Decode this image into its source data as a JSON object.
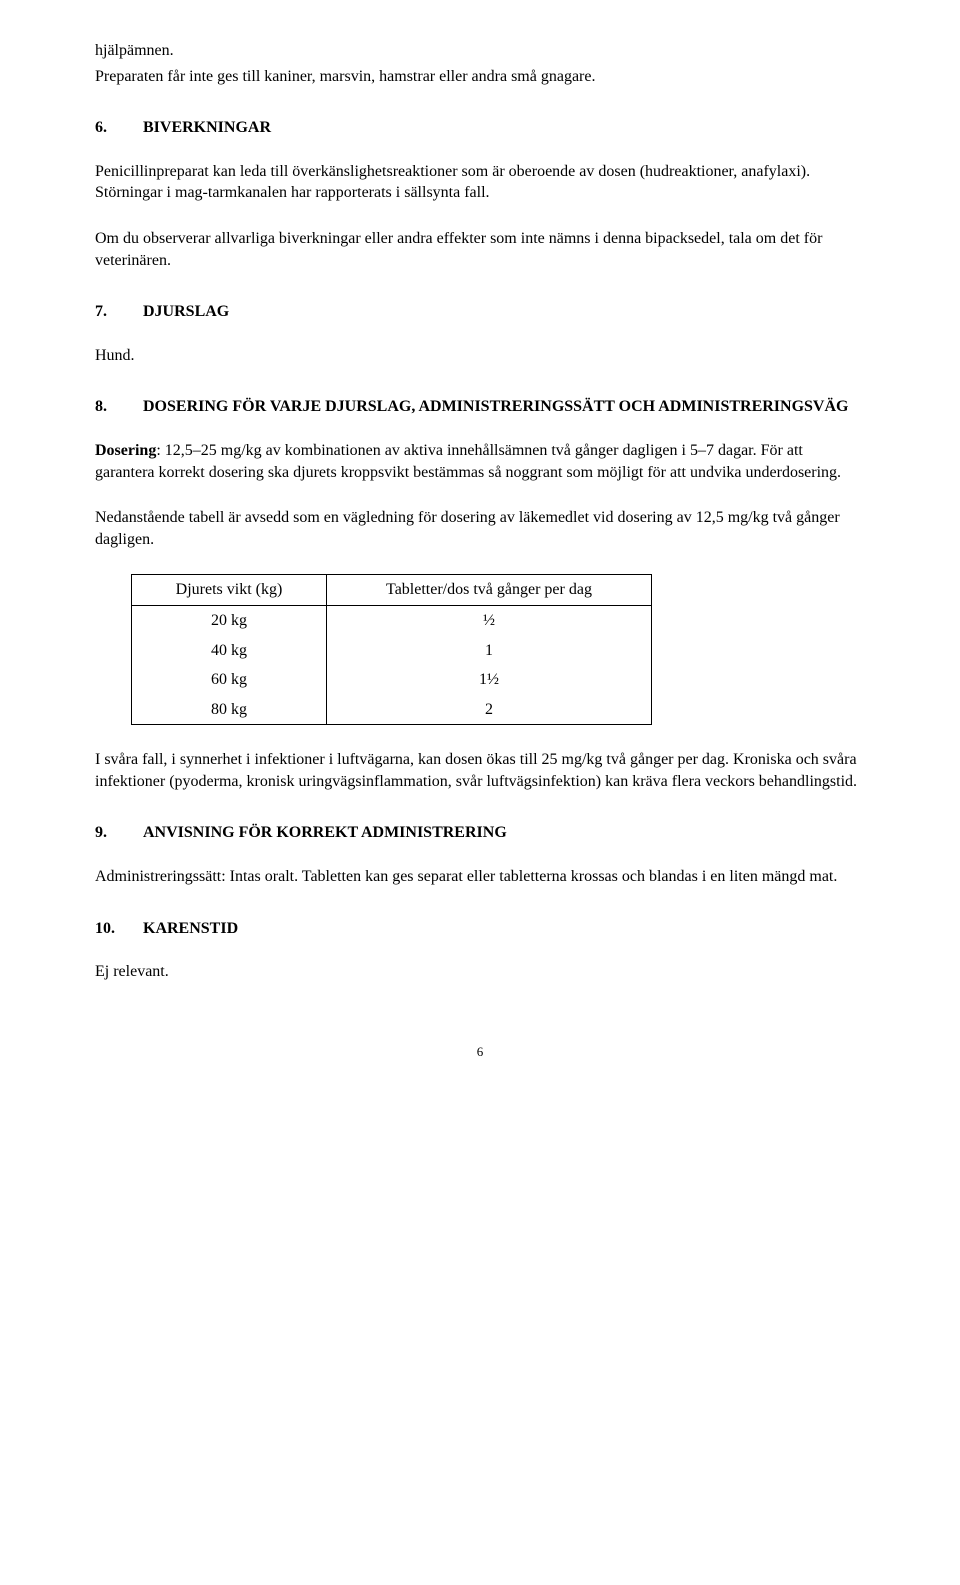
{
  "intro": {
    "line1": "hjälpämnen.",
    "line2": "Preparaten får inte ges till kaniner, marsvin, hamstrar eller andra små gnagare."
  },
  "sec6": {
    "num": "6.",
    "title": "BIVERKNINGAR",
    "p1": "Penicillinpreparat kan leda till överkänslighetsreaktioner som är oberoende av dosen (hudreaktioner, anafylaxi). Störningar i mag-tarmkanalen har rapporterats i sällsynta fall.",
    "p2": "Om du observerar allvarliga biverkningar eller andra effekter som inte nämns i denna bipacksedel, tala om det för veterinären."
  },
  "sec7": {
    "num": "7.",
    "title": "DJURSLAG",
    "body": "Hund."
  },
  "sec8": {
    "num": "8.",
    "title": "DOSERING FÖR VARJE DJURSLAG, ADMINISTRERINGSSÄTT OCH ADMINISTRERINGSVÄG",
    "dosering_label": "Dosering",
    "dosering_rest": ": 12,5–25 mg/kg av kombinationen av aktiva innehållsämnen två gånger dagligen i 5–7 dagar. För att garantera korrekt dosering ska djurets kroppsvikt bestämmas så noggrant som möjligt för att undvika underdosering.",
    "p2": "Nedanstående tabell är avsedd som en vägledning för dosering av läkemedlet vid dosering av 12,5 mg/kg två gånger dagligen.",
    "table": {
      "col1": "Djurets vikt (kg)",
      "col2": "Tabletter/dos två gånger per dag",
      "rows": [
        {
          "w": "20 kg",
          "d": "½"
        },
        {
          "w": "40 kg",
          "d": "1"
        },
        {
          "w": "60 kg",
          "d": "1½"
        },
        {
          "w": "80 kg",
          "d": "2"
        }
      ]
    },
    "p3": "I svåra fall, i synnerhet i infektioner i luftvägarna, kan dosen ökas till 25 mg/kg två gånger per dag. Kroniska och svåra infektioner (pyoderma, kronisk uringvägsinflammation, svår luftvägsinfektion) kan kräva flera veckors behandlingstid."
  },
  "sec9": {
    "num": "9.",
    "title": "ANVISNING FÖR KORREKT ADMINISTRERING",
    "body": "Administreringssätt: Intas oralt. Tabletten kan ges separat eller tabletterna krossas och blandas i en liten mängd mat."
  },
  "sec10": {
    "num": "10.",
    "title": "KARENSTID",
    "body": "Ej relevant."
  },
  "pageNumber": "6"
}
